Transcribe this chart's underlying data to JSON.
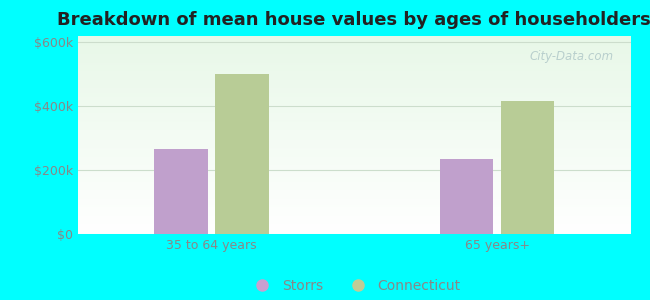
{
  "title": "Breakdown of mean house values by ages of householders",
  "categories": [
    "35 to 64 years",
    "65 years+"
  ],
  "series": {
    "Storrs": [
      265000,
      235000
    ],
    "Connecticut": [
      500000,
      415000
    ]
  },
  "bar_colors": {
    "Storrs": "#c0a0cc",
    "Connecticut": "#b8cc96"
  },
  "legend_marker_colors": {
    "Storrs": "#c8a0d0",
    "Connecticut": "#c0cc96"
  },
  "ylim": [
    0,
    620000
  ],
  "yticks": [
    0,
    200000,
    400000,
    600000
  ],
  "ytick_labels": [
    "$0",
    "$200k",
    "$400k",
    "$600k"
  ],
  "background_color": "#00ffff",
  "title_fontsize": 13,
  "tick_fontsize": 9,
  "legend_fontsize": 10,
  "bar_width": 0.28,
  "label_color": "#888888",
  "grid_color": "#ccddcc",
  "watermark_text": "City-Data.com"
}
